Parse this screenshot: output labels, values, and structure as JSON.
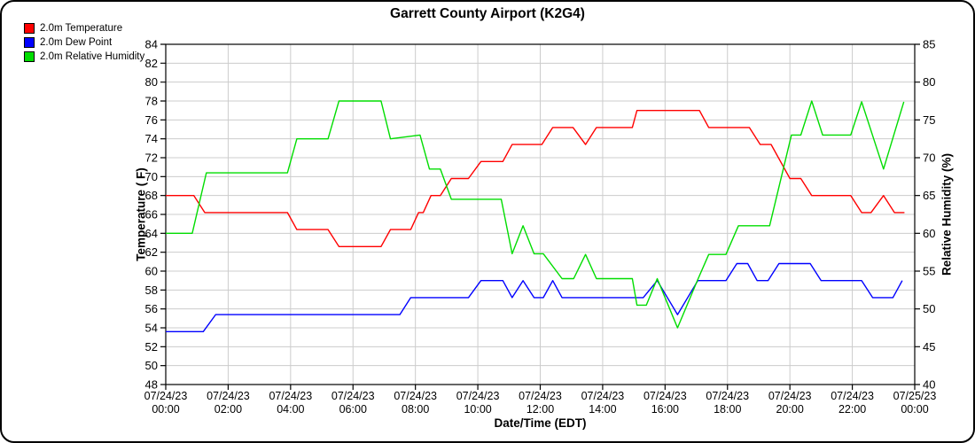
{
  "window": {
    "title": "Garrett County Airport (K2G4)"
  },
  "legend": {
    "items": [
      {
        "label": "2.0m Temperature",
        "color": "#ff0000"
      },
      {
        "label": "2.0m Dew Point",
        "color": "#0000ff"
      },
      {
        "label": "2.0m Relative Humidity",
        "color": "#00dd00"
      }
    ]
  },
  "colors": {
    "temperature": "#ff0000",
    "dew_point": "#0000ff",
    "relative_humidity": "#00dd00",
    "grid": "#cccccc",
    "axis": "#000000"
  },
  "chart_data": {
    "type": "line",
    "title": "Garrett County Airport (K2G4)",
    "xlabel": "Date/Time (EDT)",
    "ylabel_left": "Temperature ( F)",
    "ylabel_right": "Relative Humidity (%)",
    "grid": true,
    "legend_position": "top-left",
    "x_unit": "hours after 07/24/23 00:00 EDT",
    "xlim": [
      0,
      24
    ],
    "ylim_left": [
      48,
      84
    ],
    "ylim_right": [
      40,
      85
    ],
    "y_ticks_left": [
      48,
      50,
      52,
      54,
      56,
      58,
      60,
      62,
      64,
      66,
      68,
      70,
      72,
      74,
      76,
      78,
      80,
      82,
      84
    ],
    "y_ticks_right": [
      40,
      45,
      50,
      55,
      60,
      65,
      70,
      75,
      80,
      85
    ],
    "x_ticks": [
      {
        "h": 0,
        "date": "07/24/23",
        "time": "00:00"
      },
      {
        "h": 2,
        "date": "07/24/23",
        "time": "02:00"
      },
      {
        "h": 4,
        "date": "07/24/23",
        "time": "04:00"
      },
      {
        "h": 6,
        "date": "07/24/23",
        "time": "06:00"
      },
      {
        "h": 8,
        "date": "07/24/23",
        "time": "08:00"
      },
      {
        "h": 10,
        "date": "07/24/23",
        "time": "10:00"
      },
      {
        "h": 12,
        "date": "07/24/23",
        "time": "12:00"
      },
      {
        "h": 14,
        "date": "07/24/23",
        "time": "14:00"
      },
      {
        "h": 16,
        "date": "07/24/23",
        "time": "16:00"
      },
      {
        "h": 18,
        "date": "07/24/23",
        "time": "18:00"
      },
      {
        "h": 20,
        "date": "07/24/23",
        "time": "20:00"
      },
      {
        "h": 22,
        "date": "07/24/23",
        "time": "22:00"
      },
      {
        "h": 24,
        "date": "07/25/23",
        "time": "00:00"
      }
    ],
    "series": [
      {
        "name": "2.0m Temperature",
        "axis": "left",
        "unit": "F",
        "color": "#ff0000",
        "points": [
          [
            0,
            68
          ],
          [
            0.9,
            68
          ],
          [
            1.25,
            66.2
          ],
          [
            3.9,
            66.2
          ],
          [
            4.2,
            64.4
          ],
          [
            5.2,
            64.4
          ],
          [
            5.55,
            62.6
          ],
          [
            6.9,
            62.6
          ],
          [
            7.2,
            64.4
          ],
          [
            7.85,
            64.4
          ],
          [
            8.1,
            66.2
          ],
          [
            8.25,
            66.2
          ],
          [
            8.5,
            68
          ],
          [
            8.8,
            68
          ],
          [
            9.15,
            69.8
          ],
          [
            9.7,
            69.8
          ],
          [
            10.1,
            71.6
          ],
          [
            10.8,
            71.6
          ],
          [
            11.1,
            73.4
          ],
          [
            12.05,
            73.4
          ],
          [
            12.4,
            75.2
          ],
          [
            13.05,
            75.2
          ],
          [
            13.45,
            73.4
          ],
          [
            13.8,
            75.2
          ],
          [
            14.95,
            75.2
          ],
          [
            15.1,
            77
          ],
          [
            17.1,
            77
          ],
          [
            17.4,
            75.2
          ],
          [
            18.7,
            75.2
          ],
          [
            19.05,
            73.4
          ],
          [
            19.4,
            73.4
          ],
          [
            20.0,
            69.8
          ],
          [
            20.35,
            69.8
          ],
          [
            20.7,
            68
          ],
          [
            21.95,
            68
          ],
          [
            22.3,
            66.2
          ],
          [
            22.6,
            66.2
          ],
          [
            23.0,
            68
          ],
          [
            23.35,
            66.2
          ],
          [
            23.67,
            66.2
          ]
        ]
      },
      {
        "name": "2.0m Dew Point",
        "axis": "left",
        "unit": "F",
        "color": "#0000ff",
        "points": [
          [
            0,
            53.6
          ],
          [
            1.2,
            53.6
          ],
          [
            1.6,
            55.4
          ],
          [
            7.5,
            55.4
          ],
          [
            7.85,
            57.2
          ],
          [
            9.7,
            57.2
          ],
          [
            10.1,
            59
          ],
          [
            10.8,
            59
          ],
          [
            11.1,
            57.2
          ],
          [
            11.45,
            59
          ],
          [
            11.8,
            57.2
          ],
          [
            12.1,
            57.2
          ],
          [
            12.4,
            59
          ],
          [
            12.7,
            57.2
          ],
          [
            15.3,
            57.2
          ],
          [
            15.75,
            59
          ],
          [
            16.4,
            55.4
          ],
          [
            17.05,
            59
          ],
          [
            17.95,
            59
          ],
          [
            18.3,
            60.8
          ],
          [
            18.65,
            60.8
          ],
          [
            18.95,
            59
          ],
          [
            19.3,
            59
          ],
          [
            19.65,
            60.8
          ],
          [
            20.65,
            60.8
          ],
          [
            21.0,
            59
          ],
          [
            22.3,
            59
          ],
          [
            22.65,
            57.2
          ],
          [
            23.3,
            57.2
          ],
          [
            23.6,
            59
          ]
        ]
      },
      {
        "name": "2.0m Relative Humidity",
        "axis": "right",
        "unit": "%",
        "color": "#00dd00",
        "points": [
          [
            0,
            60
          ],
          [
            0.85,
            60
          ],
          [
            1.3,
            68
          ],
          [
            3.9,
            68
          ],
          [
            4.2,
            72.5
          ],
          [
            5.2,
            72.5
          ],
          [
            5.55,
            77.5
          ],
          [
            6.9,
            77.5
          ],
          [
            7.2,
            72.5
          ],
          [
            8.15,
            73
          ],
          [
            8.45,
            68.5
          ],
          [
            8.8,
            68.5
          ],
          [
            9.15,
            64.5
          ],
          [
            10.75,
            64.5
          ],
          [
            11.1,
            57.3
          ],
          [
            11.45,
            61
          ],
          [
            11.8,
            57.3
          ],
          [
            12.1,
            57.3
          ],
          [
            12.7,
            54
          ],
          [
            13.07,
            54
          ],
          [
            13.45,
            57.2
          ],
          [
            13.8,
            54
          ],
          [
            14.95,
            54
          ],
          [
            15.1,
            50.5
          ],
          [
            15.4,
            50.5
          ],
          [
            15.75,
            54
          ],
          [
            16.4,
            47.5
          ],
          [
            17.05,
            53.9
          ],
          [
            17.4,
            57.2
          ],
          [
            17.95,
            57.2
          ],
          [
            18.35,
            61
          ],
          [
            19.35,
            61
          ],
          [
            20.05,
            73
          ],
          [
            20.35,
            73
          ],
          [
            20.7,
            77.5
          ],
          [
            21.05,
            73
          ],
          [
            21.95,
            73
          ],
          [
            22.3,
            77.4
          ],
          [
            23.0,
            68.5
          ],
          [
            23.65,
            77.4
          ]
        ]
      }
    ]
  }
}
